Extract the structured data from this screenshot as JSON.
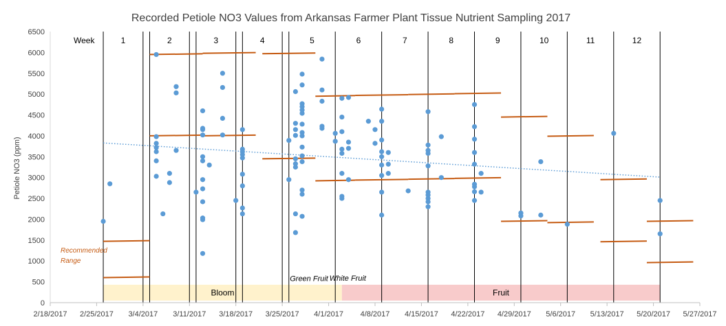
{
  "chart_data": {
    "type": "scatter",
    "title": "Recorded  Petiole NO3 Values from Arkansas Farmer Plant Tissue Nutrient Sampling 2017",
    "xlabel": "",
    "ylabel": "Petiole NO3 (ppm)",
    "ylim": [
      0,
      6500
    ],
    "xlim": [
      "2017-02-18",
      "2017-05-27"
    ],
    "yticks": [
      "0",
      "500",
      "1000",
      "1500",
      "2000",
      "2500",
      "3000",
      "3500",
      "4000",
      "4500",
      "5000",
      "5500",
      "6000",
      "6500"
    ],
    "xticks": [
      "2/18/2017",
      "2/25/2017",
      "3/4/2017",
      "3/11/2017",
      "3/18/2017",
      "3/25/2017",
      "4/1/2017",
      "4/8/2017",
      "4/15/2017",
      "4/22/2017",
      "4/29/2017",
      "5/6/2017",
      "5/13/2017",
      "5/20/2017",
      "5/27/2017"
    ],
    "grid": false,
    "colors": {
      "points": "#5B9BD5",
      "range": "#C55A11",
      "trend": "#5B9BD5",
      "bloom": "#FFF2CC",
      "fruit": "#F8CBCB"
    },
    "week_header": "Week",
    "weeks": [
      {
        "label": "1",
        "start": "2017-02-26",
        "end": "2017-03-04"
      },
      {
        "label": "2",
        "start": "2017-03-05",
        "end": "2017-03-11"
      },
      {
        "label": "3",
        "start": "2017-03-12",
        "end": "2017-03-18"
      },
      {
        "label": "4",
        "start": "2017-03-19",
        "end": "2017-03-25"
      },
      {
        "label": "5",
        "start": "2017-03-26",
        "end": "2017-04-02"
      },
      {
        "label": "6",
        "start": "2017-04-02",
        "end": "2017-04-09"
      },
      {
        "label": "7",
        "start": "2017-04-09",
        "end": "2017-04-16"
      },
      {
        "label": "8",
        "start": "2017-04-16",
        "end": "2017-04-23"
      },
      {
        "label": "9",
        "start": "2017-04-23",
        "end": "2017-04-30"
      },
      {
        "label": "10",
        "start": "2017-04-30",
        "end": "2017-05-07"
      },
      {
        "label": "11",
        "start": "2017-05-07",
        "end": "2017-05-14"
      },
      {
        "label": "12",
        "start": "2017-05-14",
        "end": "2017-05-21"
      }
    ],
    "recommended_range_label": [
      "Recommended",
      "Range"
    ],
    "recommended_range": [
      {
        "start": "2017-02-26",
        "end": "2017-03-05",
        "low": 600,
        "high": 1470
      },
      {
        "start": "2017-03-05",
        "end": "2017-03-13",
        "low": 4000,
        "high": 5950
      },
      {
        "start": "2017-03-13",
        "end": "2017-03-21",
        "low": 4000,
        "high": 5980
      },
      {
        "start": "2017-03-22",
        "end": "2017-03-30",
        "low": 3450,
        "high": 5970
      },
      {
        "start": "2017-03-30",
        "end": "2017-04-05",
        "low": 2920,
        "high": 4950
      },
      {
        "start": "2017-04-05",
        "end": "2017-04-13",
        "low": 2940,
        "high": 4970
      },
      {
        "start": "2017-04-13",
        "end": "2017-04-20",
        "low": 2960,
        "high": 4990
      },
      {
        "start": "2017-04-20",
        "end": "2017-04-27",
        "low": 2980,
        "high": 5010
      },
      {
        "start": "2017-04-27",
        "end": "2017-05-04",
        "low": 1950,
        "high": 4450
      },
      {
        "start": "2017-05-04",
        "end": "2017-05-11",
        "low": 1920,
        "high": 3990
      },
      {
        "start": "2017-05-12",
        "end": "2017-05-19",
        "low": 1460,
        "high": 2950
      },
      {
        "start": "2017-05-19",
        "end": "2017-05-26",
        "low": 960,
        "high": 1950
      }
    ],
    "trendline": [
      {
        "x": "2017-02-26",
        "y": 3830
      },
      {
        "x": "2017-05-21",
        "y": 3010
      }
    ],
    "stages": [
      {
        "label": "Bloom",
        "start": "2017-02-26",
        "end": "2017-04-03",
        "low": 50,
        "high": 430
      },
      {
        "label": "Fruit",
        "start": "2017-04-03",
        "end": "2017-05-21",
        "low": 50,
        "high": 430
      }
    ],
    "annotations": [
      {
        "text": "Green Fruit",
        "x": "2017-03-28",
        "y": 520
      },
      {
        "text": "White Fruit",
        "x": "2017-04-07",
        "y": 530
      }
    ],
    "series": [
      {
        "type": "scatter",
        "points": [
          {
            "x": "2017-02-26",
            "y": 1950
          },
          {
            "x": "2017-02-27",
            "y": 2850
          },
          {
            "x": "2017-03-06",
            "y": 5950
          },
          {
            "x": "2017-03-06",
            "y": 3980
          },
          {
            "x": "2017-03-06",
            "y": 3820
          },
          {
            "x": "2017-03-06",
            "y": 3720
          },
          {
            "x": "2017-03-06",
            "y": 3620
          },
          {
            "x": "2017-03-06",
            "y": 3400
          },
          {
            "x": "2017-03-06",
            "y": 3030
          },
          {
            "x": "2017-03-07",
            "y": 2130
          },
          {
            "x": "2017-03-08",
            "y": 3100
          },
          {
            "x": "2017-03-08",
            "y": 2880
          },
          {
            "x": "2017-03-09",
            "y": 5180
          },
          {
            "x": "2017-03-09",
            "y": 5030
          },
          {
            "x": "2017-03-09",
            "y": 3650
          },
          {
            "x": "2017-03-12",
            "y": 2650
          },
          {
            "x": "2017-03-13",
            "y": 4600
          },
          {
            "x": "2017-03-13",
            "y": 4180
          },
          {
            "x": "2017-03-13",
            "y": 4150
          },
          {
            "x": "2017-03-13",
            "y": 4020
          },
          {
            "x": "2017-03-13",
            "y": 3500
          },
          {
            "x": "2017-03-13",
            "y": 3400
          },
          {
            "x": "2017-03-13",
            "y": 2950
          },
          {
            "x": "2017-03-13",
            "y": 2730
          },
          {
            "x": "2017-03-13",
            "y": 2420
          },
          {
            "x": "2017-03-13",
            "y": 2030
          },
          {
            "x": "2017-03-13",
            "y": 1990
          },
          {
            "x": "2017-03-13",
            "y": 1180
          },
          {
            "x": "2017-03-14",
            "y": 3300
          },
          {
            "x": "2017-03-16",
            "y": 5500
          },
          {
            "x": "2017-03-16",
            "y": 5160
          },
          {
            "x": "2017-03-16",
            "y": 4420
          },
          {
            "x": "2017-03-16",
            "y": 4020
          },
          {
            "x": "2017-03-18",
            "y": 2450
          },
          {
            "x": "2017-03-19",
            "y": 4150
          },
          {
            "x": "2017-03-19",
            "y": 3680
          },
          {
            "x": "2017-03-19",
            "y": 3620
          },
          {
            "x": "2017-03-19",
            "y": 3550
          },
          {
            "x": "2017-03-19",
            "y": 3470
          },
          {
            "x": "2017-03-19",
            "y": 3080
          },
          {
            "x": "2017-03-19",
            "y": 2800
          },
          {
            "x": "2017-03-19",
            "y": 2270
          },
          {
            "x": "2017-03-19",
            "y": 2130
          },
          {
            "x": "2017-03-26",
            "y": 3890
          },
          {
            "x": "2017-03-26",
            "y": 2950
          },
          {
            "x": "2017-03-27",
            "y": 5060
          },
          {
            "x": "2017-03-27",
            "y": 4300
          },
          {
            "x": "2017-03-27",
            "y": 4150
          },
          {
            "x": "2017-03-27",
            "y": 4010
          },
          {
            "x": "2017-03-27",
            "y": 3450
          },
          {
            "x": "2017-03-27",
            "y": 3330
          },
          {
            "x": "2017-03-27",
            "y": 3250
          },
          {
            "x": "2017-03-27",
            "y": 2130
          },
          {
            "x": "2017-03-27",
            "y": 1680
          },
          {
            "x": "2017-03-28",
            "y": 5480
          },
          {
            "x": "2017-03-28",
            "y": 5220
          },
          {
            "x": "2017-03-28",
            "y": 4770
          },
          {
            "x": "2017-03-28",
            "y": 4700
          },
          {
            "x": "2017-03-28",
            "y": 4620
          },
          {
            "x": "2017-03-28",
            "y": 4540
          },
          {
            "x": "2017-03-28",
            "y": 4280
          },
          {
            "x": "2017-03-28",
            "y": 4080
          },
          {
            "x": "2017-03-28",
            "y": 4000
          },
          {
            "x": "2017-03-28",
            "y": 3730
          },
          {
            "x": "2017-03-28",
            "y": 3520
          },
          {
            "x": "2017-03-28",
            "y": 3380
          },
          {
            "x": "2017-03-28",
            "y": 2700
          },
          {
            "x": "2017-03-28",
            "y": 2600
          },
          {
            "x": "2017-03-28",
            "y": 2070
          },
          {
            "x": "2017-03-31",
            "y": 5840
          },
          {
            "x": "2017-03-31",
            "y": 5100
          },
          {
            "x": "2017-03-31",
            "y": 4830
          },
          {
            "x": "2017-03-31",
            "y": 4230
          },
          {
            "x": "2017-03-31",
            "y": 4180
          },
          {
            "x": "2017-04-02",
            "y": 4060
          },
          {
            "x": "2017-04-02",
            "y": 3870
          },
          {
            "x": "2017-04-03",
            "y": 4900
          },
          {
            "x": "2017-04-03",
            "y": 4450
          },
          {
            "x": "2017-04-03",
            "y": 4100
          },
          {
            "x": "2017-04-03",
            "y": 3680
          },
          {
            "x": "2017-04-03",
            "y": 3580
          },
          {
            "x": "2017-04-03",
            "y": 3100
          },
          {
            "x": "2017-04-03",
            "y": 2550
          },
          {
            "x": "2017-04-03",
            "y": 2500
          },
          {
            "x": "2017-04-04",
            "y": 4920
          },
          {
            "x": "2017-04-04",
            "y": 3850
          },
          {
            "x": "2017-04-04",
            "y": 3700
          },
          {
            "x": "2017-04-04",
            "y": 2950
          },
          {
            "x": "2017-04-07",
            "y": 4350
          },
          {
            "x": "2017-04-08",
            "y": 4150
          },
          {
            "x": "2017-04-08",
            "y": 3820
          },
          {
            "x": "2017-04-09",
            "y": 4640
          },
          {
            "x": "2017-04-09",
            "y": 4350
          },
          {
            "x": "2017-04-09",
            "y": 3900
          },
          {
            "x": "2017-04-09",
            "y": 3620
          },
          {
            "x": "2017-04-09",
            "y": 3500
          },
          {
            "x": "2017-04-09",
            "y": 3300
          },
          {
            "x": "2017-04-09",
            "y": 3050
          },
          {
            "x": "2017-04-09",
            "y": 2650
          },
          {
            "x": "2017-04-09",
            "y": 2100
          },
          {
            "x": "2017-04-10",
            "y": 3600
          },
          {
            "x": "2017-04-10",
            "y": 3320
          },
          {
            "x": "2017-04-10",
            "y": 3100
          },
          {
            "x": "2017-04-13",
            "y": 2680
          },
          {
            "x": "2017-04-16",
            "y": 4580
          },
          {
            "x": "2017-04-16",
            "y": 3780
          },
          {
            "x": "2017-04-16",
            "y": 3650
          },
          {
            "x": "2017-04-16",
            "y": 3580
          },
          {
            "x": "2017-04-16",
            "y": 3280
          },
          {
            "x": "2017-04-16",
            "y": 2650
          },
          {
            "x": "2017-04-16",
            "y": 2580
          },
          {
            "x": "2017-04-16",
            "y": 2500
          },
          {
            "x": "2017-04-16",
            "y": 2420
          },
          {
            "x": "2017-04-16",
            "y": 2300
          },
          {
            "x": "2017-04-18",
            "y": 3980
          },
          {
            "x": "2017-04-18",
            "y": 3000
          },
          {
            "x": "2017-04-23",
            "y": 4750
          },
          {
            "x": "2017-04-23",
            "y": 4220
          },
          {
            "x": "2017-04-23",
            "y": 3920
          },
          {
            "x": "2017-04-23",
            "y": 3600
          },
          {
            "x": "2017-04-23",
            "y": 3320
          },
          {
            "x": "2017-04-23",
            "y": 2840
          },
          {
            "x": "2017-04-23",
            "y": 2780
          },
          {
            "x": "2017-04-23",
            "y": 2660
          },
          {
            "x": "2017-04-23",
            "y": 2450
          },
          {
            "x": "2017-04-24",
            "y": 3100
          },
          {
            "x": "2017-04-24",
            "y": 2650
          },
          {
            "x": "2017-04-30",
            "y": 2150
          },
          {
            "x": "2017-04-30",
            "y": 2080
          },
          {
            "x": "2017-05-03",
            "y": 3380
          },
          {
            "x": "2017-05-03",
            "y": 2100
          },
          {
            "x": "2017-05-07",
            "y": 1880
          },
          {
            "x": "2017-05-14",
            "y": 4060
          },
          {
            "x": "2017-05-21",
            "y": 2450
          },
          {
            "x": "2017-05-21",
            "y": 1650
          }
        ]
      }
    ]
  }
}
